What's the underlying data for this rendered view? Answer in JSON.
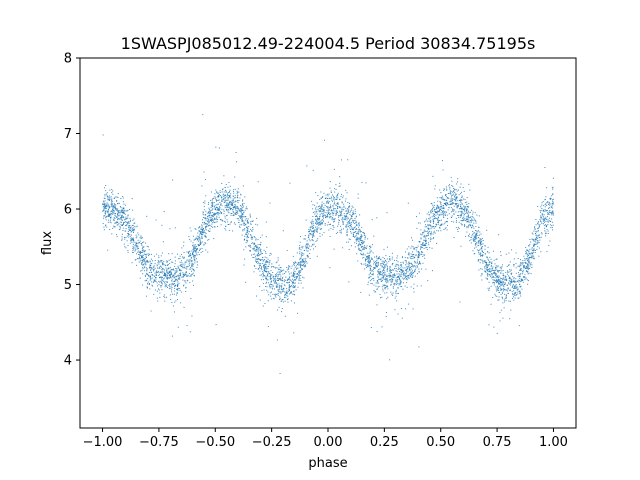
{
  "chart_data": {
    "type": "scatter",
    "title": "1SWASPJ085012.49-224004.5 Period 30834.75195s",
    "xlabel": "phase",
    "ylabel": "flux",
    "xlim": [
      -1.1,
      1.1
    ],
    "ylim": [
      3.1,
      8.0
    ],
    "xticks": [
      -1.0,
      -0.75,
      -0.5,
      -0.25,
      0.0,
      0.25,
      0.5,
      0.75,
      1.0
    ],
    "xtick_labels": [
      "−1.00",
      "−0.75",
      "−0.50",
      "−0.25",
      "0.00",
      "0.25",
      "0.50",
      "0.75",
      "1.00"
    ],
    "yticks": [
      4,
      5,
      6,
      7,
      8
    ],
    "ytick_labels": [
      "4",
      "5",
      "6",
      "7",
      "8"
    ],
    "grid": false,
    "marker_color": "#1f77b4",
    "series": [
      {
        "x": [
          -1.0,
          -0.95,
          -0.9,
          -0.85,
          -0.8,
          -0.75,
          -0.7,
          -0.65,
          -0.6,
          -0.55,
          -0.5,
          -0.45,
          -0.4,
          -0.35,
          -0.3,
          -0.25,
          -0.2,
          -0.15,
          -0.1,
          -0.05,
          0.0,
          0.05,
          0.1,
          0.15,
          0.2,
          0.25,
          0.3,
          0.35,
          0.4,
          0.45,
          0.5,
          0.55,
          0.6,
          0.65,
          0.7,
          0.75,
          0.8,
          0.85,
          0.9,
          0.95,
          1.0
        ],
        "values": [
          6.0,
          6.0,
          5.85,
          5.55,
          5.2,
          5.15,
          5.1,
          5.15,
          5.35,
          5.75,
          6.0,
          6.1,
          6.0,
          5.7,
          5.3,
          5.05,
          5.0,
          5.05,
          5.4,
          5.85,
          6.0,
          6.0,
          5.85,
          5.55,
          5.2,
          5.15,
          5.1,
          5.15,
          5.35,
          5.75,
          6.0,
          6.1,
          6.0,
          5.7,
          5.3,
          5.05,
          5.0,
          5.05,
          5.4,
          5.85,
          6.0
        ]
      }
    ]
  }
}
